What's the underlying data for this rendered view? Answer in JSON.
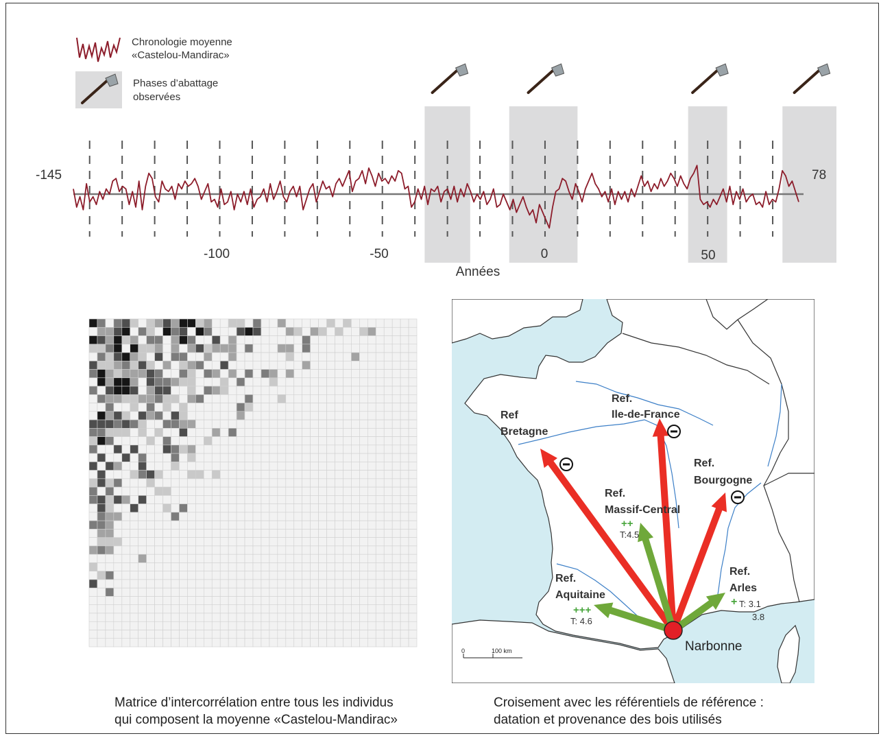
{
  "legend": {
    "series_label_line1": "Chronologie moyenne",
    "series_label_line2": "«Castelou-Mandirac»",
    "phase_label_line1": "Phases d’abattage",
    "phase_label_line2": "observées",
    "series_icon": "zigzag-line-icon",
    "phase_icon": "axe-icon"
  },
  "timeline": {
    "start_label": "-145",
    "end_label": "78",
    "xlabel": "Années",
    "ticks": [
      "-100",
      "-50",
      "0",
      "50"
    ],
    "colors": {
      "series": "#8c1c2a",
      "baseline": "#777777",
      "phase_band": "#dcdcdd"
    }
  },
  "chart_data": {
    "type": "line",
    "x_start": -145,
    "x_end": 78,
    "xlabel": "Années",
    "x_tick_labels": [
      "-100",
      "-50",
      "0",
      "50"
    ],
    "felling_phases": [
      [
        -37,
        -23
      ],
      [
        -11,
        10
      ],
      [
        44,
        56
      ],
      [
        73,
        93
      ]
    ],
    "series": [
      {
        "name": "Chronologie moyenne «Castelou-Mandirac»",
        "values": [
          0.2,
          -0.5,
          -0.1,
          -0.6,
          0.4,
          -0.3,
          -0.1,
          -0.4,
          0.1,
          -0.2,
          0.2,
          0.0,
          0.5,
          0.6,
          0.1,
          0.3,
          0.2,
          -0.4,
          0.1,
          -0.5,
          0.5,
          -0.6,
          0.3,
          0.8,
          0.6,
          -0.1,
          -0.3,
          0.5,
          0.2,
          0.1,
          0.3,
          -0.2,
          0.4,
          0.2,
          0.5,
          0.3,
          0.4,
          0.6,
          0.3,
          -0.2,
          0.1,
          0.4,
          -0.3,
          -0.2,
          -0.5,
          0.2,
          -0.4,
          -0.3,
          0.1,
          -0.6,
          0.0,
          -0.3,
          0.1,
          -0.4,
          0.2,
          -0.5,
          -0.2,
          -0.1,
          0.2,
          -0.3,
          0.4,
          -0.2,
          0.1,
          0.5,
          -0.1,
          -0.3,
          0.1,
          0.3,
          -0.1,
          0.3,
          -0.6,
          -0.2,
          0.2,
          0.4,
          -0.3,
          0.1,
          0.5,
          0.2,
          0.3,
          -0.1,
          0.4,
          0.6,
          0.3,
          0.6,
          0.9,
          0.1,
          0.5,
          0.6,
          0.9,
          0.4,
          1.0,
          0.7,
          0.3,
          0.8,
          0.5,
          0.6,
          0.4,
          0.7,
          0.5,
          0.9,
          0.8,
          0.2,
          0.3,
          -0.5,
          -0.3,
          0.2,
          -0.2,
          0.3,
          -0.4,
          0.2,
          0.1,
          0.3,
          -0.3,
          0.1,
          0.2,
          -0.2,
          0.3,
          -0.3,
          0.2,
          -0.1,
          0.4,
          0.1,
          -0.3,
          0.0,
          -0.2,
          0.1,
          -0.4,
          -0.2,
          0.2,
          -0.5,
          -0.4,
          0.0,
          -0.3,
          -0.6,
          -0.2,
          -0.7,
          -0.4,
          -0.1,
          -0.5,
          -0.8,
          -0.6,
          -1.1,
          -0.4,
          -0.7,
          -1.0,
          -1.3,
          -0.5,
          0.1,
          0.2,
          0.6,
          0.5,
          0.1,
          -0.2,
          0.4,
          0.1,
          -0.3,
          0.2,
          0.5,
          0.8,
          0.4,
          0.2,
          -0.1,
          0.1,
          -0.3,
          0.2,
          -0.4,
          0.1,
          -0.2,
          0.1,
          -0.3,
          0.2,
          -0.1,
          0.3,
          0.7,
          0.3,
          0.5,
          0.1,
          0.4,
          0.2,
          0.6,
          0.3,
          0.5,
          0.8,
          0.6,
          0.3,
          0.7,
          0.4,
          0.2,
          0.6,
          0.8,
          1.1,
          -0.2,
          -0.4,
          -0.3,
          -0.5,
          -0.2,
          -0.4,
          -0.1,
          0.2,
          -0.3,
          0.3,
          -0.4,
          0.1,
          -0.2,
          0.2,
          -0.3,
          -0.1,
          0.0,
          -0.4,
          -0.3,
          -0.5,
          0.1,
          -0.4,
          -0.2,
          -0.3,
          0.2,
          0.9,
          0.7,
          0.3,
          0.5,
          0.1,
          -0.3
        ]
      }
    ]
  },
  "matrix": {
    "caption_line1": "Matrice d’intercorrélation entre tous les individus",
    "caption_line2": "qui composent la moyenne «Castelou-Mandirac»",
    "rows": 39,
    "cols": 40,
    "palette": [
      "#f2f2f2",
      "#c9c9c9",
      "#a3a3a3",
      "#7c7c7c",
      "#4e4e4e",
      "#161616"
    ]
  },
  "map": {
    "caption_line1": "Croisement avec les référentiels de référence :",
    "caption_line2": "datation et provenance des bois utilisés",
    "origin_label": "Narbonne",
    "scale_zero": "0",
    "scale_label": "100 km",
    "refs": [
      {
        "line1": "Ref",
        "line2": "Bretagne",
        "sign": "−",
        "score": "",
        "t": ""
      },
      {
        "line1": "Ref.",
        "line2": "Ile-de-France",
        "sign": "−",
        "score": "",
        "t": ""
      },
      {
        "line1": "Ref.",
        "line2": "Bourgogne",
        "sign": "−",
        "score": "",
        "t": ""
      },
      {
        "line1": "Ref.",
        "line2": "Massif-Central",
        "sign": "",
        "score": "++",
        "t": "T:4.5"
      },
      {
        "line1": "Ref.",
        "line2": "Aquitaine",
        "sign": "",
        "score": "+++",
        "t": "T: 4.6"
      },
      {
        "line1": "Ref.",
        "line2": "Arles",
        "sign": "",
        "score": "+",
        "t": "T: 3.1",
        "t2": "3.8"
      }
    ],
    "colors": {
      "sea": "#d3ecf2",
      "land": "#ffffff",
      "border": "#333333",
      "river": "#3c7fc7",
      "negative_arrow": "#ea2e25",
      "positive_arrow": "#6fa83a",
      "origin_dot": "#e21f26"
    }
  }
}
